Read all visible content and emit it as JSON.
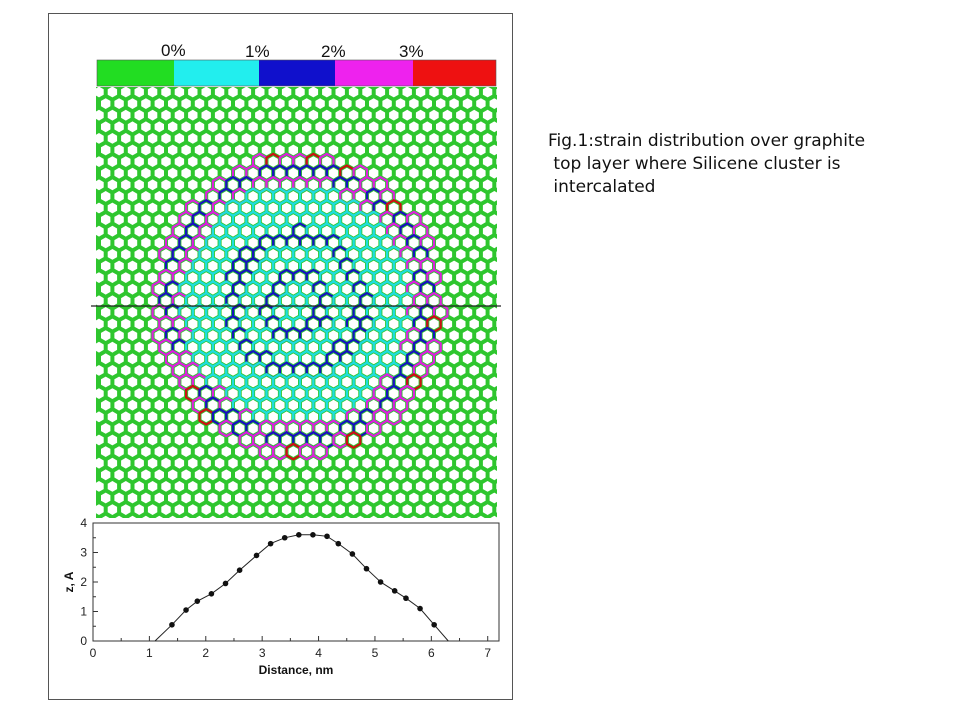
{
  "figure": {
    "colorbar": {
      "labels": [
        "0%",
        "1%",
        "2%",
        "3%"
      ],
      "colors": [
        "#22dd22",
        "#22eeee",
        "#1010cc",
        "#ee22ee",
        "#ee1111"
      ]
    },
    "lattice_colors": {
      "background": "#2ec62e",
      "hole": "#ffffff",
      "strain_low": "#1fdede",
      "strain_mid": "#1515bb",
      "strain_high": "#dd22dd",
      "strain_max": "#cc1111"
    }
  },
  "caption": {
    "lines": [
      "Fig.1:strain distribution over graphite",
      " top layer where Silicene cluster is",
      " intercalated"
    ]
  },
  "chart_data": {
    "type": "line",
    "xlabel": "Distance, nm",
    "ylabel": "z, A",
    "xlim": [
      0,
      7.2
    ],
    "ylim": [
      0,
      4
    ],
    "xticks": [
      0,
      1,
      2,
      3,
      4,
      5,
      6,
      7
    ],
    "yticks": [
      0,
      1,
      2,
      3,
      4
    ],
    "line": {
      "x": [
        1.1,
        1.4,
        1.65,
        1.85,
        2.1,
        2.35,
        2.6,
        2.9,
        3.15,
        3.4,
        3.65,
        3.9,
        4.15,
        4.35,
        4.6,
        4.85,
        5.1,
        5.35,
        5.55,
        5.8,
        6.05,
        6.3
      ],
      "y": [
        0.0,
        0.55,
        1.05,
        1.35,
        1.6,
        1.95,
        2.4,
        2.9,
        3.3,
        3.5,
        3.6,
        3.6,
        3.55,
        3.3,
        2.95,
        2.45,
        2.0,
        1.7,
        1.45,
        1.1,
        0.55,
        0.0
      ]
    },
    "markers": {
      "x": [
        1.4,
        1.65,
        1.85,
        2.1,
        2.35,
        2.6,
        2.9,
        3.15,
        3.4,
        3.65,
        3.9,
        4.15,
        4.35,
        4.6,
        4.85,
        5.1,
        5.35,
        5.55,
        5.8,
        6.05
      ],
      "y": [
        0.55,
        1.05,
        1.35,
        1.6,
        1.95,
        2.4,
        2.9,
        3.3,
        3.5,
        3.6,
        3.6,
        3.55,
        3.3,
        2.95,
        2.45,
        2.0,
        1.7,
        1.45,
        1.1,
        0.55
      ]
    }
  }
}
